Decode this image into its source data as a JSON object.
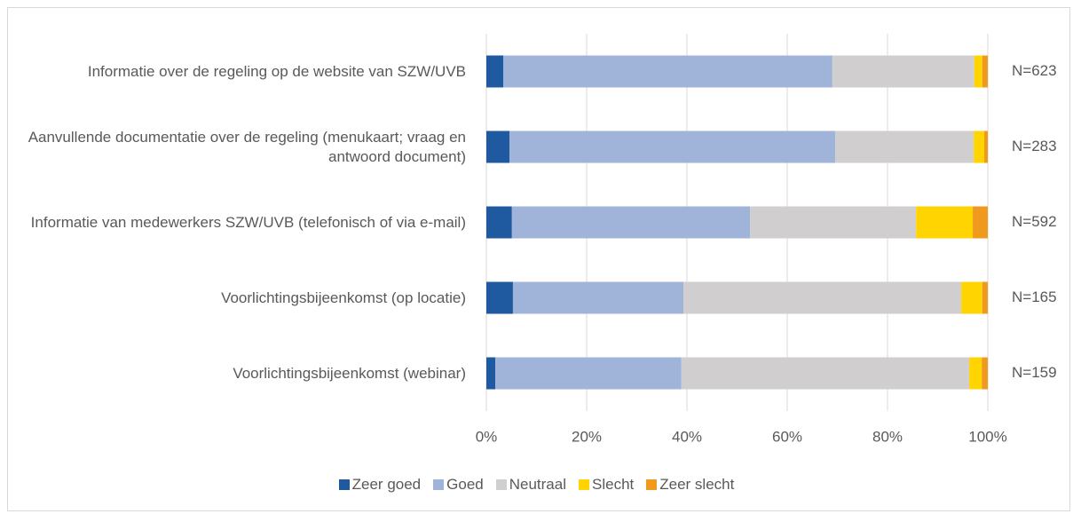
{
  "chart_data": {
    "type": "stacked_bar_horizontal",
    "categories": [
      "Informatie over de regeling op de website van SZW/UVB",
      "Aanvullende documentatie over de regeling (menukaart; vraag en antwoord document)",
      "Informatie van medewerkers SZW/UVB (telefonisch of via e-mail)",
      "Voorlichtingsbijeenkomst (op locatie)",
      "Voorlichtingsbijeenkomst (webinar)"
    ],
    "series": [
      {
        "name": "Zeer goed",
        "color": "#1f5aa0",
        "values": [
          3.4,
          4.6,
          5.1,
          5.3,
          1.8
        ]
      },
      {
        "name": "Goed",
        "color": "#a0b3d9",
        "values": [
          65.6,
          65.0,
          47.5,
          34.0,
          37.1
        ]
      },
      {
        "name": "Neutraal",
        "color": "#d0cece",
        "values": [
          28.3,
          27.6,
          33.1,
          55.4,
          57.4
        ]
      },
      {
        "name": "Slecht",
        "color": "#ffd400",
        "values": [
          1.6,
          2.1,
          11.3,
          4.2,
          2.5
        ]
      },
      {
        "name": "Zeer slecht",
        "color": "#ef9a1c",
        "values": [
          1.1,
          0.7,
          3.0,
          1.1,
          1.2
        ]
      }
    ],
    "annotations": [
      "N=623",
      "N=283",
      "N=592",
      "N=165",
      "N=159"
    ],
    "xlim": [
      0,
      100
    ],
    "xticks": [
      {
        "value": 0,
        "label": "0%"
      },
      {
        "value": 20,
        "label": "20%"
      },
      {
        "value": 40,
        "label": "40%"
      },
      {
        "value": 60,
        "label": "60%"
      },
      {
        "value": 80,
        "label": "80%"
      },
      {
        "value": 100,
        "label": "100%"
      }
    ],
    "grid": true
  }
}
